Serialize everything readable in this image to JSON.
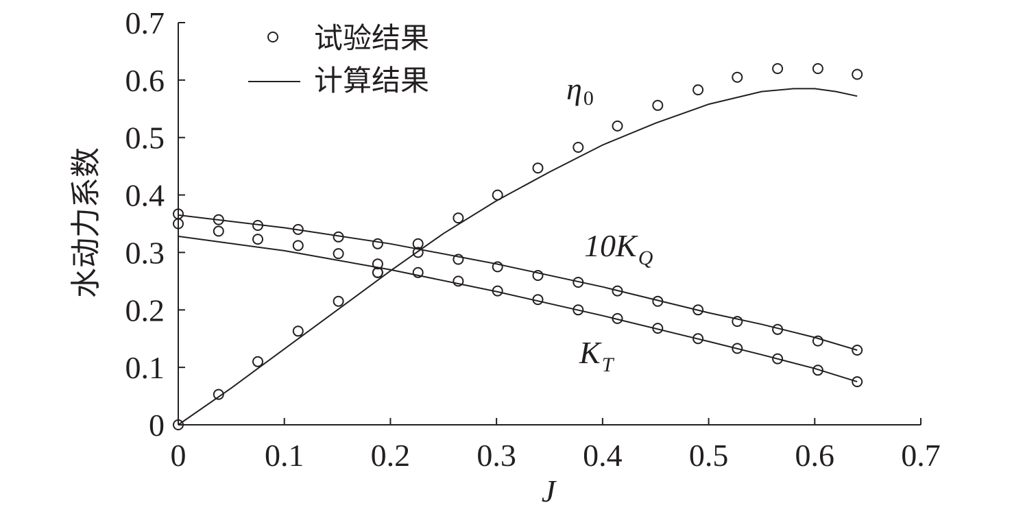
{
  "chart_data": {
    "type": "scatter",
    "xlabel": "J",
    "ylabel": "水动力系数",
    "xlim": [
      0,
      0.7
    ],
    "ylim": [
      0,
      0.7
    ],
    "x_ticks": [
      "0",
      "0.1",
      "0.2",
      "0.3",
      "0.4",
      "0.5",
      "0.6",
      "0.7"
    ],
    "y_ticks": [
      "0",
      "0.1",
      "0.2",
      "0.3",
      "0.4",
      "0.5",
      "0.6",
      "0.7"
    ],
    "grid": false,
    "legend_position": "top-left",
    "legend": [
      {
        "marker": "circle",
        "label": "试验结果"
      },
      {
        "marker": "line",
        "label": "计算结果"
      }
    ],
    "series": [
      {
        "name": "η0",
        "label_main": "η",
        "label_sub": "0",
        "experimental": {
          "x": [
            0,
            0.038,
            0.075,
            0.113,
            0.151,
            0.188,
            0.226,
            0.264,
            0.301,
            0.339,
            0.377,
            0.414,
            0.452,
            0.49,
            0.527,
            0.565,
            0.603,
            0.64
          ],
          "y": [
            0,
            0.053,
            0.11,
            0.163,
            0.215,
            0.265,
            0.3,
            0.36,
            0.4,
            0.447,
            0.483,
            0.52,
            0.556,
            0.583,
            0.605,
            0.62,
            0.62,
            0.61
          ]
        },
        "computed": {
          "x": [
            0,
            0.05,
            0.1,
            0.15,
            0.2,
            0.25,
            0.3,
            0.35,
            0.4,
            0.45,
            0.5,
            0.55,
            0.58,
            0.6,
            0.62,
            0.64
          ],
          "y": [
            0,
            0.064,
            0.132,
            0.2,
            0.268,
            0.333,
            0.39,
            0.44,
            0.487,
            0.525,
            0.558,
            0.58,
            0.585,
            0.585,
            0.58,
            0.572
          ]
        }
      },
      {
        "name": "10KQ",
        "label_main": "10K",
        "label_sub": "Q",
        "experimental": {
          "x": [
            0,
            0.038,
            0.075,
            0.113,
            0.151,
            0.188,
            0.226,
            0.264,
            0.301,
            0.339,
            0.377,
            0.414,
            0.452,
            0.49,
            0.527,
            0.565,
            0.603,
            0.64
          ],
          "y": [
            0.367,
            0.357,
            0.347,
            0.34,
            0.327,
            0.315,
            0.315,
            0.288,
            0.275,
            0.26,
            0.248,
            0.233,
            0.215,
            0.2,
            0.18,
            0.166,
            0.146,
            0.13
          ]
        },
        "computed": {
          "x": [
            0,
            0.1,
            0.2,
            0.3,
            0.4,
            0.5,
            0.55,
            0.6,
            0.64
          ],
          "y": [
            0.365,
            0.343,
            0.315,
            0.28,
            0.24,
            0.195,
            0.175,
            0.152,
            0.13
          ]
        }
      },
      {
        "name": "KT",
        "label_main": "K",
        "label_sub": "T",
        "experimental": {
          "x": [
            0,
            0.038,
            0.075,
            0.113,
            0.151,
            0.188,
            0.188,
            0.226,
            0.264,
            0.301,
            0.339,
            0.377,
            0.414,
            0.452,
            0.49,
            0.527,
            0.565,
            0.603,
            0.64
          ],
          "y": [
            0.35,
            0.337,
            0.323,
            0.312,
            0.298,
            0.28,
            0.265,
            0.265,
            0.25,
            0.233,
            0.218,
            0.2,
            0.185,
            0.168,
            0.15,
            0.133,
            0.115,
            0.095,
            0.075
          ]
        },
        "computed": {
          "x": [
            0,
            0.1,
            0.2,
            0.3,
            0.4,
            0.5,
            0.55,
            0.6,
            0.64
          ],
          "y": [
            0.328,
            0.303,
            0.27,
            0.232,
            0.19,
            0.145,
            0.122,
            0.098,
            0.075
          ]
        }
      }
    ]
  }
}
